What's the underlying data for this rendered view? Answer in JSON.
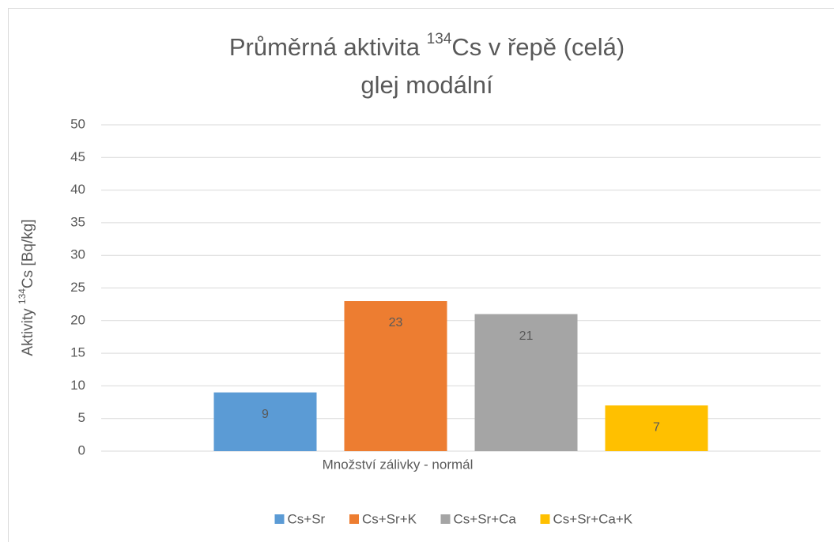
{
  "chart_data": {
    "type": "bar",
    "title": {
      "before": "Průměrná aktivita ",
      "sup": "134",
      "after": "Cs v řepě (celá)"
    },
    "subtitle": "glej modální",
    "y_label": {
      "before": "Aktivity ",
      "sup": "134",
      "after": "Cs [Bq/kg]"
    },
    "categories": [
      "Množství zálivky - normál"
    ],
    "series": [
      {
        "name": "Cs+Sr",
        "color": "#5b9bd5",
        "values": [
          9
        ]
      },
      {
        "name": "Cs+Sr+K",
        "color": "#ed7d31",
        "values": [
          23
        ]
      },
      {
        "name": "Cs+Sr+Ca",
        "color": "#a5a5a5",
        "values": [
          21
        ]
      },
      {
        "name": "Cs+Sr+Ca+K",
        "color": "#ffc000",
        "values": [
          7
        ]
      }
    ],
    "ylim": [
      0,
      50
    ],
    "yticks": [
      0,
      5,
      10,
      15,
      20,
      25,
      30,
      35,
      40,
      45,
      50
    ],
    "grid": true,
    "legend": "bottom",
    "data_labels": true
  }
}
